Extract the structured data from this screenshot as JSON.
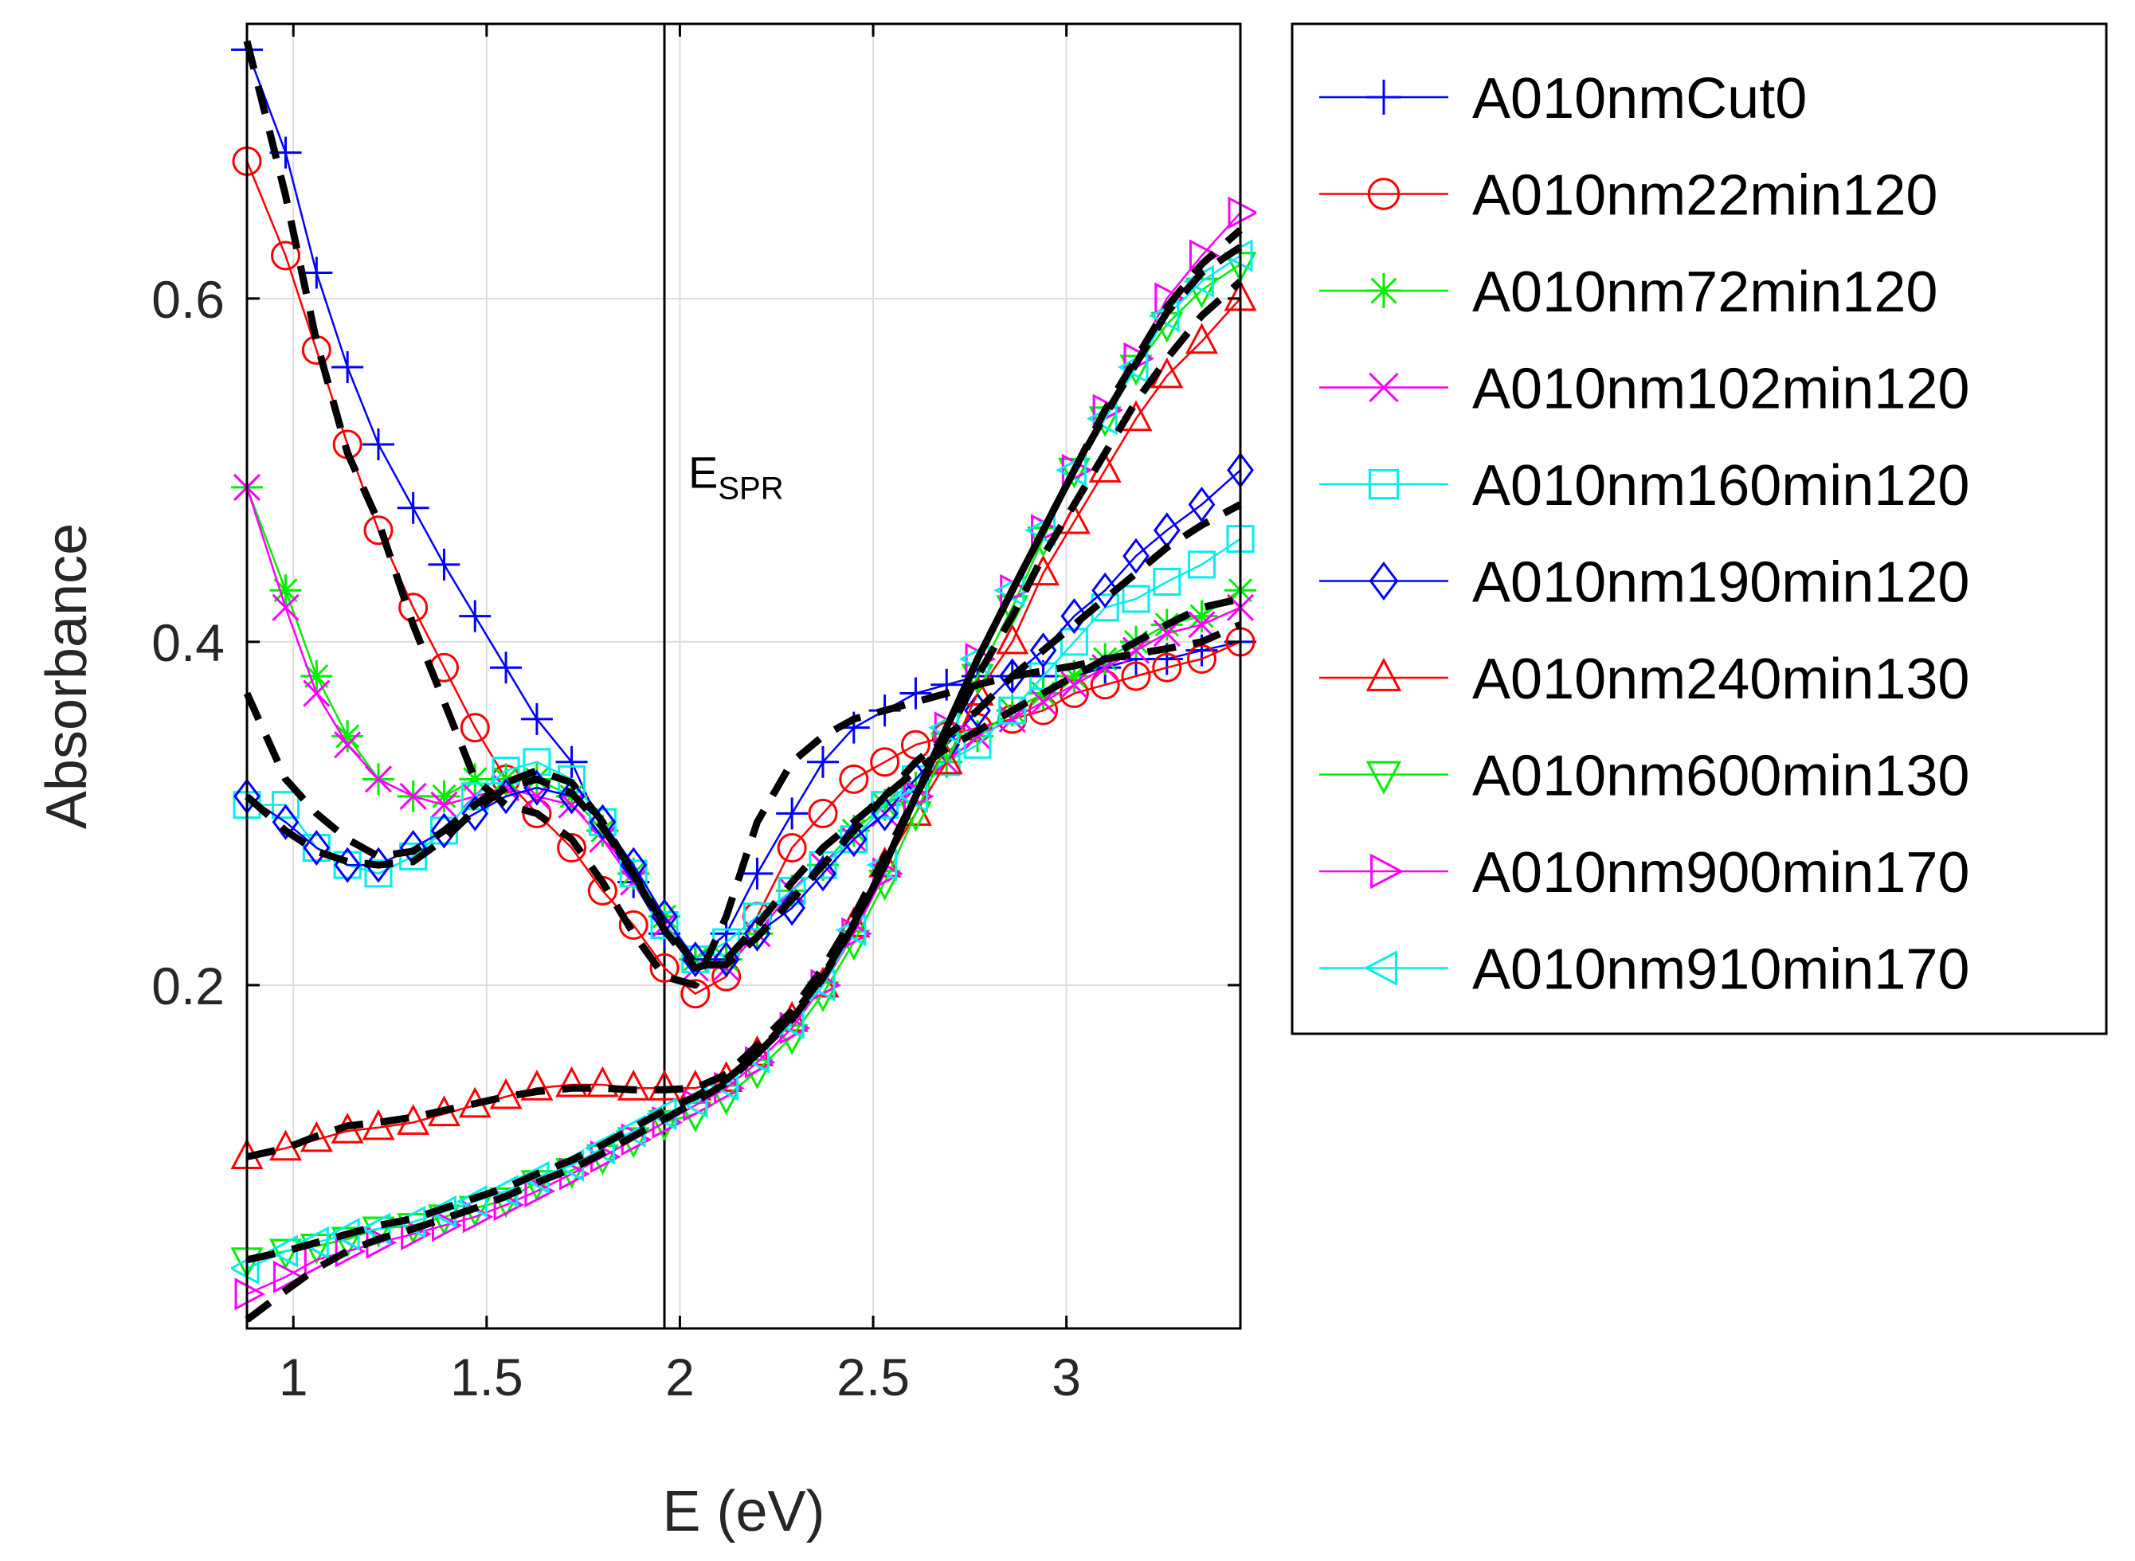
{
  "chart_data": {
    "type": "line",
    "title": "",
    "xlabel": "E (eV)",
    "ylabel": "Absorbance",
    "xlim": [
      0.88,
      3.45
    ],
    "ylim": [
      0.0,
      0.76
    ],
    "grid": true,
    "x_ticks": [
      1,
      1.5,
      2,
      2.5,
      3
    ],
    "x_tick_labels": [
      "1",
      "1.5",
      "2",
      "2.5",
      "3"
    ],
    "y_ticks": [
      0.2,
      0.4,
      0.6
    ],
    "y_tick_labels": [
      "0.2",
      "0.4",
      "0.6"
    ],
    "legend_position": "outside-right",
    "annotation": {
      "text": "E",
      "subscript": "SPR",
      "x": 1.96,
      "y": 0.5
    },
    "vertical_line": {
      "x": 1.96
    },
    "marker_x": [
      0.88,
      0.98,
      1.06,
      1.14,
      1.22,
      1.31,
      1.39,
      1.47,
      1.55,
      1.63,
      1.72,
      1.8,
      1.88,
      1.96,
      2.04,
      2.12,
      2.2,
      2.29,
      2.37,
      2.45,
      2.53,
      2.61,
      2.69,
      2.77,
      2.86,
      2.94,
      3.02,
      3.1,
      3.18,
      3.26,
      3.35,
      3.45
    ],
    "series": [
      {
        "name": "A010nmCut0",
        "color": "#0000ff",
        "marker": "plus",
        "values": [
          0.745,
          0.685,
          0.615,
          0.56,
          0.515,
          0.478,
          0.445,
          0.415,
          0.385,
          0.355,
          0.33,
          0.29,
          0.26,
          0.23,
          0.215,
          0.23,
          0.265,
          0.3,
          0.33,
          0.35,
          0.36,
          0.37,
          0.375,
          0.38,
          0.38,
          0.38,
          0.38,
          0.385,
          0.39,
          0.39,
          0.395,
          0.4
        ]
      },
      {
        "name": "A010nm22min120",
        "color": "#ff0000",
        "marker": "circle",
        "values": [
          0.68,
          0.625,
          0.57,
          0.515,
          0.465,
          0.42,
          0.385,
          0.35,
          0.32,
          0.3,
          0.28,
          0.255,
          0.235,
          0.21,
          0.195,
          0.205,
          0.24,
          0.28,
          0.3,
          0.32,
          0.33,
          0.34,
          0.345,
          0.35,
          0.355,
          0.36,
          0.37,
          0.375,
          0.38,
          0.385,
          0.39,
          0.4
        ]
      },
      {
        "name": "A010nm72min120",
        "color": "#00ee00",
        "marker": "asterisk",
        "values": [
          0.49,
          0.43,
          0.38,
          0.345,
          0.32,
          0.31,
          0.31,
          0.32,
          0.32,
          0.32,
          0.31,
          0.29,
          0.265,
          0.24,
          0.215,
          0.215,
          0.23,
          0.255,
          0.27,
          0.29,
          0.305,
          0.315,
          0.33,
          0.345,
          0.36,
          0.37,
          0.38,
          0.39,
          0.4,
          0.41,
          0.415,
          0.43
        ]
      },
      {
        "name": "A010nm102min120",
        "color": "#ff00ff",
        "marker": "x",
        "values": [
          0.49,
          0.42,
          0.37,
          0.34,
          0.32,
          0.31,
          0.305,
          0.31,
          0.315,
          0.31,
          0.305,
          0.285,
          0.26,
          0.235,
          0.21,
          0.21,
          0.23,
          0.255,
          0.27,
          0.285,
          0.3,
          0.315,
          0.33,
          0.345,
          0.355,
          0.365,
          0.375,
          0.385,
          0.395,
          0.405,
          0.41,
          0.42
        ]
      },
      {
        "name": "A010nm160min120",
        "color": "#00eeee",
        "marker": "square",
        "values": [
          0.305,
          0.305,
          0.28,
          0.27,
          0.265,
          0.275,
          0.29,
          0.31,
          0.325,
          0.33,
          0.32,
          0.295,
          0.265,
          0.235,
          0.215,
          0.225,
          0.24,
          0.255,
          0.27,
          0.285,
          0.305,
          0.32,
          0.33,
          0.34,
          0.36,
          0.38,
          0.4,
          0.42,
          0.425,
          0.435,
          0.445,
          0.46
        ]
      },
      {
        "name": "A010nm190min120",
        "color": "#0000ff",
        "marker": "diamond",
        "values": [
          0.31,
          0.295,
          0.28,
          0.27,
          0.27,
          0.28,
          0.29,
          0.3,
          0.31,
          0.315,
          0.31,
          0.295,
          0.27,
          0.24,
          0.215,
          0.215,
          0.23,
          0.245,
          0.265,
          0.285,
          0.3,
          0.32,
          0.34,
          0.36,
          0.38,
          0.395,
          0.415,
          0.43,
          0.45,
          0.465,
          0.48,
          0.5
        ]
      },
      {
        "name": "A010nm240min130",
        "color": "#ff0000",
        "marker": "triangle-up",
        "values": [
          0.1,
          0.105,
          0.11,
          0.115,
          0.117,
          0.12,
          0.125,
          0.13,
          0.135,
          0.14,
          0.142,
          0.142,
          0.14,
          0.14,
          0.14,
          0.145,
          0.16,
          0.18,
          0.2,
          0.235,
          0.27,
          0.3,
          0.33,
          0.37,
          0.4,
          0.44,
          0.47,
          0.5,
          0.53,
          0.555,
          0.575,
          0.6
        ]
      },
      {
        "name": "A010nm600min130",
        "color": "#00ee00",
        "marker": "triangle-down",
        "values": [
          0.04,
          0.045,
          0.048,
          0.052,
          0.058,
          0.06,
          0.065,
          0.07,
          0.075,
          0.085,
          0.092,
          0.1,
          0.11,
          0.12,
          0.125,
          0.135,
          0.15,
          0.17,
          0.195,
          0.225,
          0.26,
          0.3,
          0.34,
          0.38,
          0.42,
          0.46,
          0.5,
          0.53,
          0.56,
          0.585,
          0.605,
          0.62
        ]
      },
      {
        "name": "A010nm900min170",
        "color": "#ff00ff",
        "marker": "triangle-right",
        "values": [
          0.02,
          0.03,
          0.04,
          0.045,
          0.05,
          0.055,
          0.06,
          0.065,
          0.072,
          0.08,
          0.09,
          0.1,
          0.11,
          0.12,
          0.13,
          0.14,
          0.155,
          0.175,
          0.2,
          0.23,
          0.265,
          0.31,
          0.35,
          0.39,
          0.43,
          0.465,
          0.5,
          0.535,
          0.565,
          0.6,
          0.625,
          0.65
        ]
      },
      {
        "name": "A010nm910min170",
        "color": "#00eeee",
        "marker": "triangle-left",
        "values": [
          0.035,
          0.045,
          0.05,
          0.055,
          0.058,
          0.062,
          0.068,
          0.074,
          0.08,
          0.088,
          0.095,
          0.105,
          0.115,
          0.125,
          0.132,
          0.142,
          0.158,
          0.178,
          0.2,
          0.232,
          0.27,
          0.31,
          0.35,
          0.39,
          0.43,
          0.465,
          0.5,
          0.53,
          0.56,
          0.59,
          0.61,
          0.625
        ]
      }
    ],
    "fit_series": [
      {
        "name": "fit-A010nmCut0",
        "values": [
          0.75,
          0.66,
          0.575,
          0.51,
          0.47,
          0.41,
          0.365,
          0.32,
          0.305,
          0.3,
          0.285,
          0.26,
          0.23,
          0.205,
          0.2,
          0.24,
          0.295,
          0.33,
          0.345,
          0.355,
          0.36,
          0.365,
          0.37,
          0.375,
          0.38,
          0.383,
          0.386,
          0.39,
          0.393,
          0.396,
          0.4,
          0.41
        ]
      },
      {
        "name": "fit-A010nm72min120",
        "values": [
          0.37,
          0.32,
          0.3,
          0.285,
          0.275,
          0.278,
          0.29,
          0.305,
          0.318,
          0.325,
          0.318,
          0.295,
          0.265,
          0.232,
          0.21,
          0.215,
          0.235,
          0.26,
          0.28,
          0.295,
          0.31,
          0.325,
          0.338,
          0.348,
          0.36,
          0.37,
          0.38,
          0.39,
          0.4,
          0.41,
          0.42,
          0.425
        ]
      },
      {
        "name": "fit-A010nm190min120",
        "values": [
          0.31,
          0.29,
          0.278,
          0.272,
          0.27,
          0.272,
          0.285,
          0.302,
          0.315,
          0.32,
          0.312,
          0.292,
          0.265,
          0.235,
          0.212,
          0.212,
          0.228,
          0.25,
          0.27,
          0.29,
          0.31,
          0.33,
          0.345,
          0.36,
          0.38,
          0.395,
          0.41,
          0.425,
          0.44,
          0.455,
          0.468,
          0.48
        ]
      },
      {
        "name": "fit-A010nm240min130",
        "values": [
          0.1,
          0.105,
          0.112,
          0.118,
          0.12,
          0.123,
          0.127,
          0.131,
          0.135,
          0.138,
          0.14,
          0.14,
          0.139,
          0.139,
          0.14,
          0.148,
          0.165,
          0.185,
          0.21,
          0.24,
          0.275,
          0.31,
          0.345,
          0.38,
          0.415,
          0.45,
          0.48,
          0.51,
          0.54,
          0.565,
          0.59,
          0.61
        ]
      },
      {
        "name": "fit-A010nm900min170",
        "values": [
          0.005,
          0.022,
          0.035,
          0.045,
          0.052,
          0.058,
          0.064,
          0.07,
          0.077,
          0.085,
          0.093,
          0.102,
          0.112,
          0.122,
          0.132,
          0.143,
          0.16,
          0.182,
          0.205,
          0.236,
          0.27,
          0.31,
          0.35,
          0.39,
          0.43,
          0.465,
          0.5,
          0.535,
          0.565,
          0.595,
          0.62,
          0.64
        ]
      },
      {
        "name": "fit-A010nm910min170",
        "values": [
          0.04,
          0.045,
          0.05,
          0.055,
          0.06,
          0.064,
          0.07,
          0.076,
          0.082,
          0.09,
          0.098,
          0.107,
          0.117,
          0.127,
          0.135,
          0.145,
          0.16,
          0.18,
          0.204,
          0.235,
          0.27,
          0.31,
          0.35,
          0.39,
          0.43,
          0.465,
          0.5,
          0.532,
          0.562,
          0.592,
          0.615,
          0.63
        ]
      }
    ]
  },
  "colors": {
    "axis": "#000000",
    "grid": "#dcdcdc",
    "fit": "#000000",
    "tick_text": "#262626"
  }
}
